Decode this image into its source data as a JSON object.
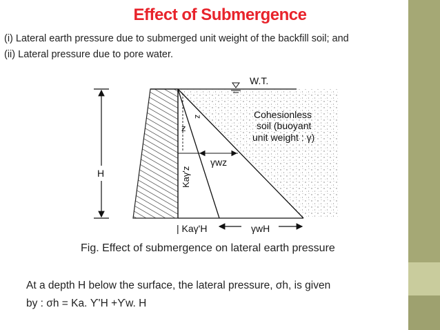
{
  "title": "Effect of Submergence",
  "paragraphs": {
    "line1": "(i) Lateral earth pressure due to submerged unit weight of the backfill soil; and",
    "line2": "(ii) Lateral pressure due to pore water."
  },
  "figure": {
    "wt_label": "W.T.",
    "soil_label_1": "Cohesionless",
    "soil_label_2": "soil (buoyant",
    "soil_label_3": "unit weight : γ)",
    "h_label": "H",
    "z_label": "z",
    "ka_z_label": "Kaγ'z",
    "gw_z_label": "γwz",
    "bottom_left_label": "| Kaγ'H",
    "bottom_right_label": "γwH",
    "caption": "Fig. Effect of submergence on lateral earth pressure"
  },
  "body": {
    "line1": "At a depth H below the surface, the lateral pressure, σh, is given",
    "line2": "by : σh = Ka. ϒ'H +ϒw. H"
  }
}
